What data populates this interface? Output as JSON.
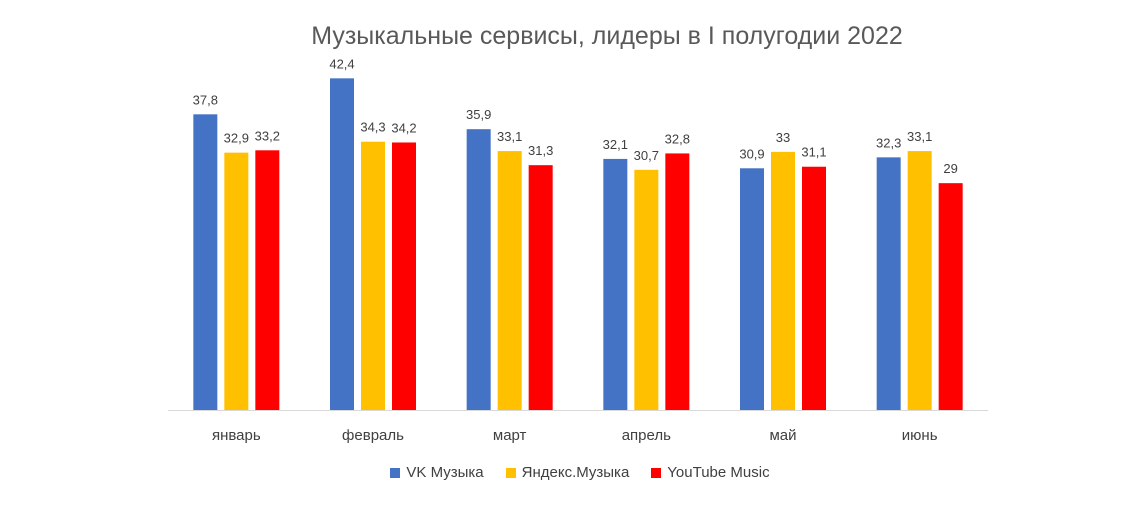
{
  "chart_data": {
    "type": "bar",
    "title": "Музыкальные сервисы, лидеры в I полугодии 2022",
    "categories": [
      "январь",
      "февраль",
      "март",
      "апрель",
      "май",
      "июнь"
    ],
    "series": [
      {
        "name": "VK Музыка",
        "color": "#4472C4",
        "values": [
          37.8,
          42.4,
          35.9,
          32.1,
          30.9,
          32.3
        ],
        "labels": [
          "37,8",
          "42,4",
          "35,9",
          "32,1",
          "30,9",
          "32,3"
        ]
      },
      {
        "name": "Яндекс.Музыка",
        "color": "#FFC000",
        "values": [
          32.9,
          34.3,
          33.1,
          30.7,
          33.0,
          33.1
        ],
        "labels": [
          "32,9",
          "34,3",
          "33,1",
          "30,7",
          "33",
          "33,1"
        ]
      },
      {
        "name": "YouTube Music",
        "color": "#FF0000",
        "values": [
          33.2,
          34.2,
          31.3,
          32.8,
          31.1,
          29.0
        ],
        "labels": [
          "33,2",
          "34,2",
          "31,3",
          "32,8",
          "31,1",
          "29"
        ]
      }
    ],
    "ylim": [
      0,
      45
    ],
    "grid": false,
    "legend_position": "bottom"
  }
}
